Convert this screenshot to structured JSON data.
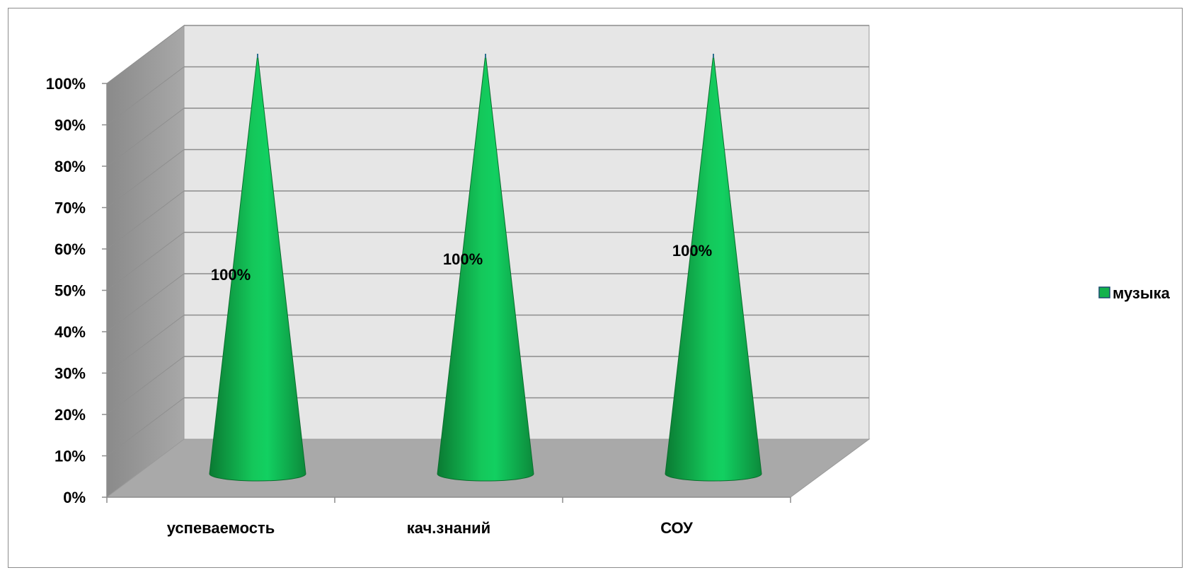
{
  "chart_data": {
    "type": "bar",
    "shape": "cone-3d",
    "categories": [
      "успеваемость",
      "кач.знаний",
      "СОУ"
    ],
    "series": [
      {
        "name": "музыка",
        "values": [
          100,
          100,
          100
        ],
        "color": "#12b24c"
      }
    ],
    "data_labels": [
      "100%",
      "100%",
      "100%"
    ],
    "y_ticks": [
      "0%",
      "10%",
      "20%",
      "30%",
      "40%",
      "50%",
      "60%",
      "70%",
      "80%",
      "90%",
      "100%"
    ],
    "ylim": [
      0,
      100
    ],
    "grid": true,
    "legend_position": "right",
    "colors": {
      "wall": "#e6e6e6",
      "floor": "#a9a9a9",
      "side_wall": "#9a9a9a",
      "grid": "#8c8c8c"
    }
  }
}
